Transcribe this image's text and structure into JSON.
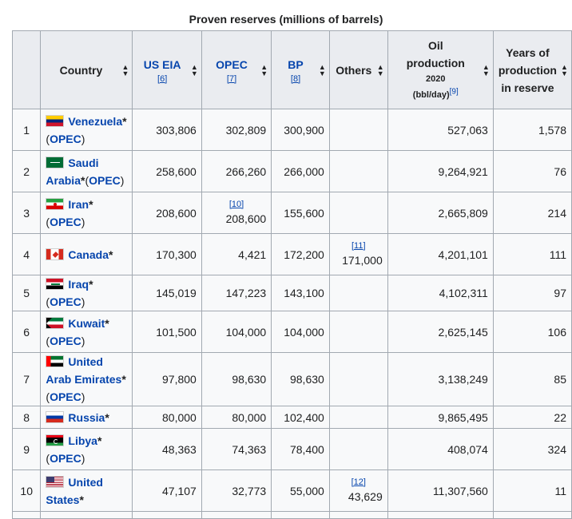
{
  "caption": "Proven reserves (millions of barrels)",
  "headers": {
    "country": "Country",
    "us_eia": "US EIA",
    "us_eia_ref": "[6]",
    "opec": "OPEC",
    "opec_ref": "[7]",
    "bp": "BP",
    "bp_ref": "[8]",
    "others": "Others",
    "oil_production_l1": "Oil",
    "oil_production_l2": "production",
    "oil_production_year": "2020",
    "oil_production_unit": "(bbl/day)",
    "oil_production_ref": "[9]",
    "years_l1": "Years of",
    "years_l2": "production",
    "years_l3": "in reserve"
  },
  "rows": [
    {
      "rank": "1",
      "flag": "venezuela-flag",
      "country": "Venezuela",
      "suffix": "*",
      "opec": "OPEC",
      "us_eia": "303,806",
      "opec_val": "302,809",
      "bp": "300,900",
      "others": "",
      "others_ref": "",
      "opec_ref": "",
      "production": "527,063",
      "years": "1,578"
    },
    {
      "rank": "2",
      "flag": "saudi-arabia-flag",
      "country": "Saudi Arabia",
      "suffix": "*",
      "opec": "OPEC",
      "us_eia": "258,600",
      "opec_val": "266,260",
      "bp": "266,000",
      "others": "",
      "others_ref": "",
      "opec_ref": "",
      "production": "9,264,921",
      "years": "76"
    },
    {
      "rank": "3",
      "flag": "iran-flag",
      "country": "Iran",
      "suffix": "*",
      "opec": "OPEC",
      "us_eia": "208,600",
      "opec_val": "208,600",
      "bp": "155,600",
      "others": "",
      "others_ref": "",
      "opec_ref": "[10]",
      "production": "2,665,809",
      "years": "214"
    },
    {
      "rank": "4",
      "flag": "canada-flag",
      "country": "Canada",
      "suffix": "*",
      "opec": "",
      "us_eia": "170,300",
      "opec_val": "4,421",
      "bp": "172,200",
      "others": "171,000",
      "others_ref": "[11]",
      "opec_ref": "",
      "production": "4,201,101",
      "years": "111"
    },
    {
      "rank": "5",
      "flag": "iraq-flag",
      "country": "Iraq",
      "suffix": "*",
      "opec": "OPEC",
      "us_eia": "145,019",
      "opec_val": "147,223",
      "bp": "143,100",
      "others": "",
      "others_ref": "",
      "opec_ref": "",
      "production": "4,102,311",
      "years": "97"
    },
    {
      "rank": "6",
      "flag": "kuwait-flag",
      "country": "Kuwait",
      "suffix": "*",
      "opec": "OPEC",
      "us_eia": "101,500",
      "opec_val": "104,000",
      "bp": "104,000",
      "others": "",
      "others_ref": "",
      "opec_ref": "",
      "production": "2,625,145",
      "years": "106"
    },
    {
      "rank": "7",
      "flag": "uae-flag",
      "country": "United Arab Emirates",
      "suffix": "*",
      "opec": "OPEC",
      "us_eia": "97,800",
      "opec_val": "98,630",
      "bp": "98,630",
      "others": "",
      "others_ref": "",
      "opec_ref": "",
      "production": "3,138,249",
      "years": "85"
    },
    {
      "rank": "8",
      "flag": "russia-flag",
      "country": "Russia",
      "suffix": "*",
      "opec": "",
      "us_eia": "80,000",
      "opec_val": "80,000",
      "bp": "102,400",
      "others": "",
      "others_ref": "",
      "opec_ref": "",
      "production": "9,865,495",
      "years": "22"
    },
    {
      "rank": "9",
      "flag": "libya-flag",
      "country": "Libya",
      "suffix": "*",
      "opec": "OPEC",
      "us_eia": "48,363",
      "opec_val": "74,363",
      "bp": "78,400",
      "others": "",
      "others_ref": "",
      "opec_ref": "",
      "production": "408,074",
      "years": "324"
    },
    {
      "rank": "10",
      "flag": "usa-flag",
      "country": "United States",
      "suffix": "*",
      "opec": "",
      "us_eia": "47,107",
      "opec_val": "32,773",
      "bp": "55,000",
      "others": "43,629",
      "others_ref": "[12]",
      "opec_ref": "",
      "production": "11,307,560",
      "years": "11"
    }
  ]
}
